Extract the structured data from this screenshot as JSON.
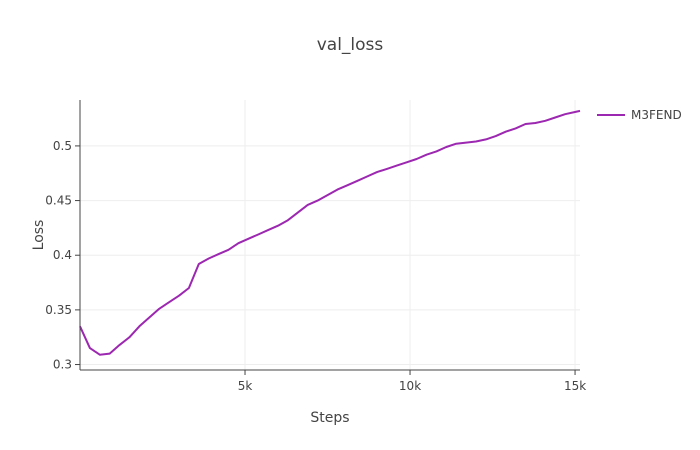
{
  "chart_data": {
    "type": "line",
    "title": "val_loss",
    "xlabel": "Steps",
    "ylabel": "Loss",
    "xlim": [
      0,
      15150
    ],
    "ylim": [
      0.295,
      0.542
    ],
    "x_ticks": [
      {
        "value": 5000,
        "label": "5k"
      },
      {
        "value": 10000,
        "label": "10k"
      },
      {
        "value": 15000,
        "label": "15k"
      }
    ],
    "y_ticks": [
      {
        "value": 0.3,
        "label": "0.3"
      },
      {
        "value": 0.35,
        "label": "0.35"
      },
      {
        "value": 0.4,
        "label": "0.4"
      },
      {
        "value": 0.45,
        "label": "0.45"
      },
      {
        "value": 0.5,
        "label": "0.5"
      }
    ],
    "grid": true,
    "legend_position": "top-right",
    "series": [
      {
        "name": "M3FEND",
        "color": "#9c27b0",
        "x": [
          0,
          300,
          600,
          900,
          1200,
          1500,
          1800,
          2100,
          2400,
          2700,
          3000,
          3300,
          3600,
          3900,
          4200,
          4500,
          4800,
          5100,
          5400,
          5700,
          6000,
          6300,
          6600,
          6900,
          7200,
          7500,
          7800,
          8100,
          8400,
          8700,
          9000,
          9300,
          9600,
          9900,
          10200,
          10500,
          10800,
          11100,
          11400,
          11700,
          12000,
          12300,
          12600,
          12900,
          13200,
          13500,
          13800,
          14100,
          14400,
          14700,
          15000,
          15150
        ],
        "y": [
          0.335,
          0.315,
          0.309,
          0.31,
          0.318,
          0.325,
          0.335,
          0.343,
          0.351,
          0.357,
          0.363,
          0.37,
          0.392,
          0.397,
          0.401,
          0.405,
          0.411,
          0.415,
          0.419,
          0.423,
          0.427,
          0.432,
          0.439,
          0.446,
          0.45,
          0.455,
          0.46,
          0.464,
          0.468,
          0.472,
          0.476,
          0.479,
          0.482,
          0.485,
          0.488,
          0.492,
          0.495,
          0.499,
          0.502,
          0.503,
          0.504,
          0.506,
          0.509,
          0.513,
          0.516,
          0.52,
          0.521,
          0.523,
          0.526,
          0.529,
          0.531,
          0.532
        ]
      }
    ]
  }
}
